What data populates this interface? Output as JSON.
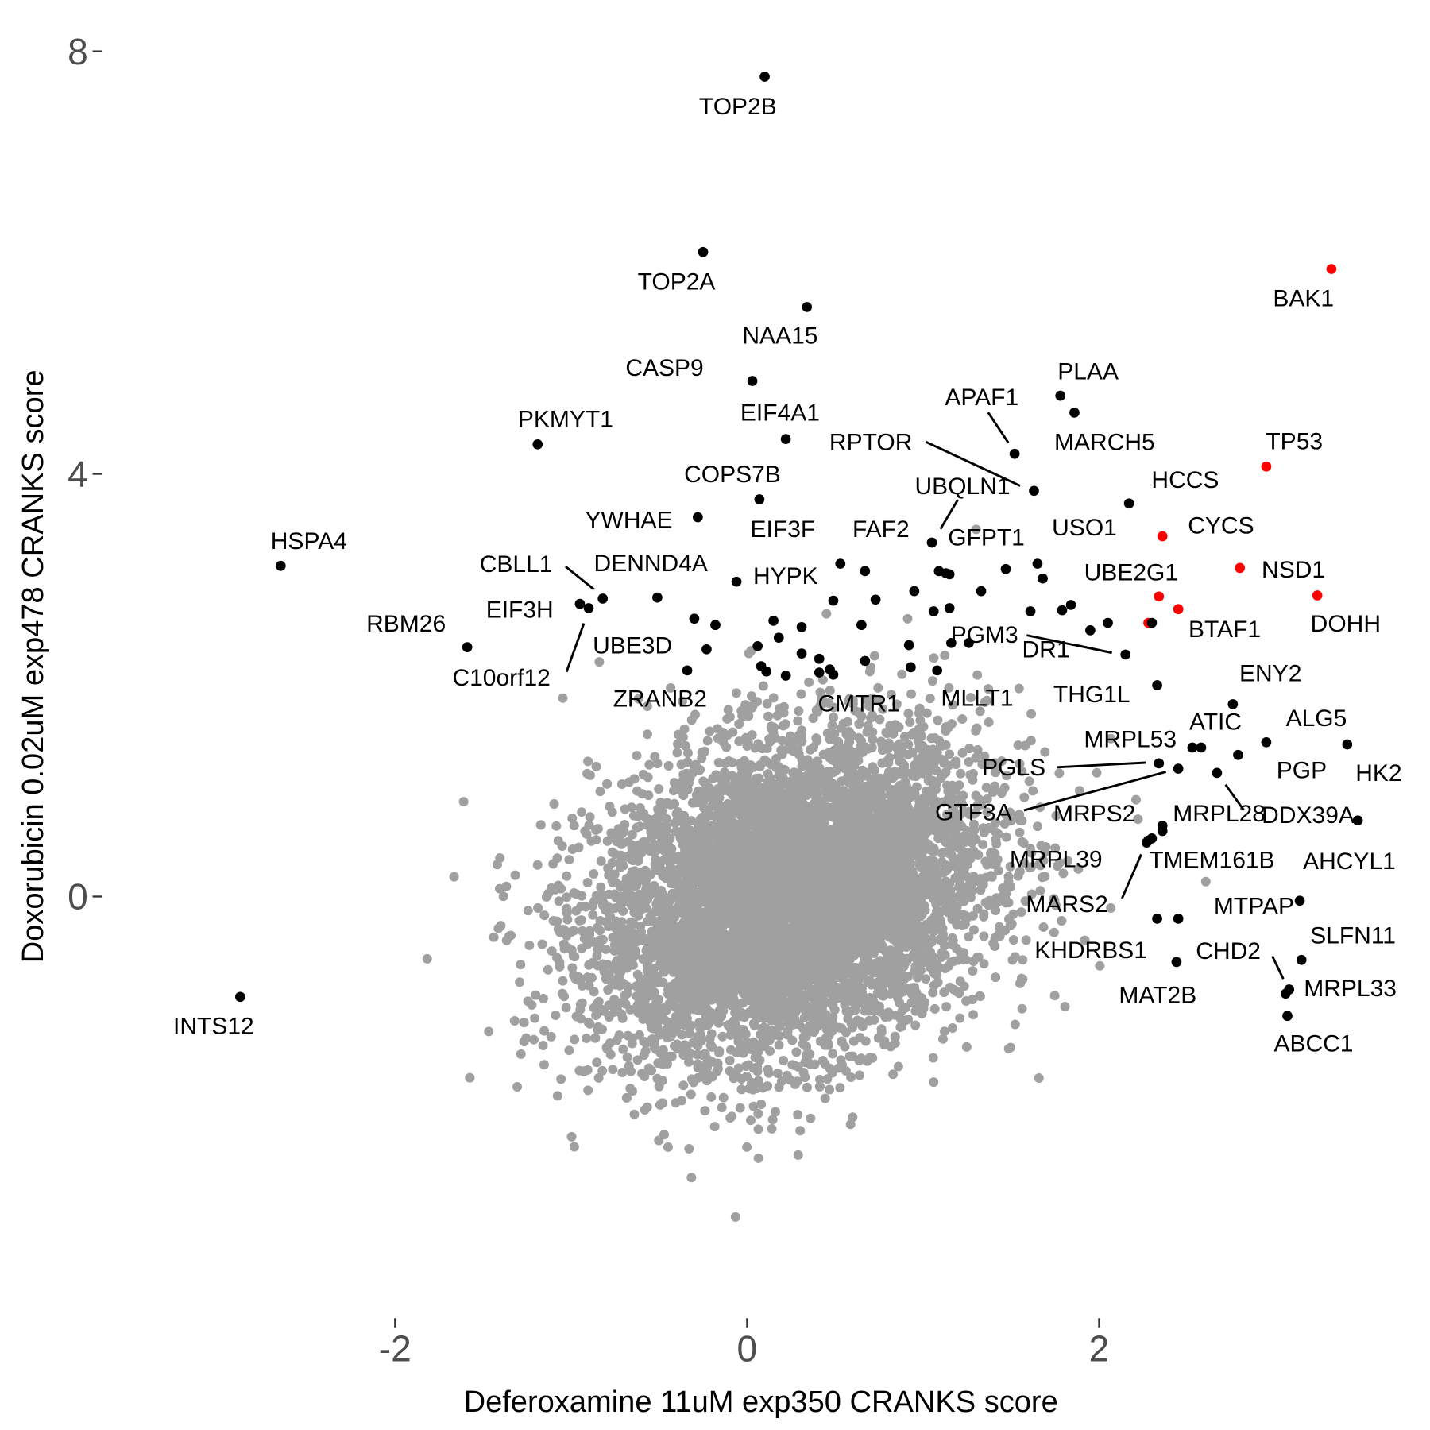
{
  "chart_data": {
    "type": "scatter",
    "title": "",
    "xlabel": "Deferoxamine 11uM exp350 CRANKS score",
    "ylabel": "Doxorubicin 0.02uM exp478 CRANKS score",
    "xlim": [
      -3.3,
      3.6
    ],
    "ylim": [
      -3.2,
      8.2
    ],
    "x_ticks": [
      -2,
      0,
      2
    ],
    "y_ticks": [
      0,
      4,
      8
    ],
    "grid": false,
    "legend": "none",
    "colors": {
      "background_genes": "#a0a0a0",
      "highlighted": "#000000",
      "highlighted_red": "#ff0000"
    },
    "labeled_points": [
      {
        "label": "TOP2B",
        "x": 0.1,
        "y": 7.76,
        "color": "black"
      },
      {
        "label": "TOP2A",
        "x": -0.25,
        "y": 6.1,
        "color": "black"
      },
      {
        "label": "NAA15",
        "x": 0.34,
        "y": 5.58,
        "color": "black"
      },
      {
        "label": "CASP9",
        "x": 0.03,
        "y": 4.88,
        "color": "black"
      },
      {
        "label": "EIF4A1",
        "x": 0.22,
        "y": 4.33,
        "color": "black"
      },
      {
        "label": "PKMYT1",
        "x": -1.19,
        "y": 4.28,
        "color": "black"
      },
      {
        "label": "COPS7B",
        "x": 0.07,
        "y": 3.76,
        "color": "black"
      },
      {
        "label": "YWHAE",
        "x": -0.28,
        "y": 3.59,
        "color": "black"
      },
      {
        "label": "HSPA4",
        "x": -2.65,
        "y": 3.13,
        "color": "black"
      },
      {
        "label": "HYPK",
        "x": -0.06,
        "y": 2.98,
        "color": "black"
      },
      {
        "label": "EIF3F",
        "x": 0.53,
        "y": 3.15,
        "color": "black"
      },
      {
        "label": "CBLL1",
        "x": -0.82,
        "y": 2.82,
        "color": "black"
      },
      {
        "label": "DENND4A",
        "x": -0.51,
        "y": 2.83,
        "color": "black"
      },
      {
        "label": "EIF3H",
        "x": -0.95,
        "y": 2.77,
        "color": "black"
      },
      {
        "label": "C10orf12",
        "x": -0.9,
        "y": 2.73,
        "color": "black"
      },
      {
        "label": "UBE3D",
        "x": -0.23,
        "y": 2.34,
        "color": "black"
      },
      {
        "label": "ZRANB2",
        "x": -0.34,
        "y": 2.14,
        "color": "black"
      },
      {
        "label": "RBM26",
        "x": -1.59,
        "y": 2.36,
        "color": "black"
      },
      {
        "label": "INTS12",
        "x": -2.88,
        "y": -0.95,
        "color": "black"
      },
      {
        "label": "BAK1",
        "x": 3.32,
        "y": 5.94,
        "color": "red"
      },
      {
        "label": "TP53",
        "x": 2.95,
        "y": 4.07,
        "color": "red"
      },
      {
        "label": "CYCS",
        "x": 2.36,
        "y": 3.41,
        "color": "red"
      },
      {
        "label": "NSD1",
        "x": 2.8,
        "y": 3.11,
        "color": "red"
      },
      {
        "label": "DOHH",
        "x": 3.24,
        "y": 2.85,
        "color": "red"
      },
      {
        "label": "UBE2G1",
        "x": 2.34,
        "y": 2.84,
        "color": "red"
      },
      {
        "label": "BTAF1",
        "x": 2.45,
        "y": 2.72,
        "color": "red"
      },
      {
        "label": "PLAA",
        "x": 1.78,
        "y": 4.74,
        "color": "black"
      },
      {
        "label": "MARCH5",
        "x": 1.86,
        "y": 4.58,
        "color": "black"
      },
      {
        "label": "APAF1",
        "x": 1.52,
        "y": 4.19,
        "color": "black"
      },
      {
        "label": "RPTOR",
        "x": 1.63,
        "y": 3.84,
        "color": "black"
      },
      {
        "label": "HCCS",
        "x": 2.17,
        "y": 3.72,
        "color": "black"
      },
      {
        "label": "UBQLN1",
        "x": 1.05,
        "y": 3.35,
        "color": "black"
      },
      {
        "label": "GFPT1",
        "x": 1.13,
        "y": 3.06,
        "color": "black"
      },
      {
        "label": "FAF2",
        "x": 0.67,
        "y": 3.08,
        "color": "black"
      },
      {
        "label": "USO1",
        "x": 1.65,
        "y": 3.15,
        "color": "black"
      },
      {
        "label": "PGM3",
        "x": 1.95,
        "y": 2.52,
        "color": "black"
      },
      {
        "label": "DR1",
        "x": 2.15,
        "y": 2.29,
        "color": "black"
      },
      {
        "label": "THG1L",
        "x": 2.33,
        "y": 2.0,
        "color": "black"
      },
      {
        "label": "MLLT1",
        "x": 1.08,
        "y": 2.14,
        "color": "black"
      },
      {
        "label": "CMTR1",
        "x": 0.49,
        "y": 2.1,
        "color": "black"
      },
      {
        "label": "ENY2",
        "x": 2.76,
        "y": 1.82,
        "color": "black"
      },
      {
        "label": "ALG5",
        "x": 2.95,
        "y": 1.46,
        "color": "black"
      },
      {
        "label": "ATIC",
        "x": 2.58,
        "y": 1.41,
        "color": "black"
      },
      {
        "label": "HK2",
        "x": 3.41,
        "y": 1.44,
        "color": "black"
      },
      {
        "label": "PGP",
        "x": 2.79,
        "y": 1.34,
        "color": "black"
      },
      {
        "label": "MRPL53",
        "x": 2.53,
        "y": 1.41,
        "color": "black"
      },
      {
        "label": "PGLS",
        "x": 2.34,
        "y": 1.26,
        "color": "black"
      },
      {
        "label": "GTF3A",
        "x": 2.45,
        "y": 1.21,
        "color": "black"
      },
      {
        "label": "DDX39A",
        "x": 2.67,
        "y": 1.17,
        "color": "black"
      },
      {
        "label": "MRPS2",
        "x": 2.28,
        "y": 0.53,
        "color": "black"
      },
      {
        "label": "MRPL28",
        "x": 2.36,
        "y": 0.67,
        "color": "black"
      },
      {
        "label": "MRPL39",
        "x": 2.3,
        "y": 0.55,
        "color": "black"
      },
      {
        "label": "TMEM161B",
        "x": 2.36,
        "y": 0.62,
        "color": "black"
      },
      {
        "label": "AHCYL1",
        "x": 3.47,
        "y": 0.72,
        "color": "black"
      },
      {
        "label": "MARS2",
        "x": 2.27,
        "y": 0.51,
        "color": "black"
      },
      {
        "label": "MTPAP",
        "x": 3.14,
        "y": -0.04,
        "color": "black"
      },
      {
        "label": "SLFN11",
        "x": 3.15,
        "y": -0.6,
        "color": "black"
      },
      {
        "label": "KHDRBS1",
        "x": 2.33,
        "y": -0.21,
        "color": "black"
      },
      {
        "label": "CHD2",
        "x": 3.06,
        "y": -0.92,
        "color": "black"
      },
      {
        "label": "MAT2B",
        "x": 2.44,
        "y": -0.62,
        "color": "black"
      },
      {
        "label": "MRPL33",
        "x": 3.08,
        "y": -0.88,
        "color": "black"
      },
      {
        "label": "ABCC1",
        "x": 3.07,
        "y": -1.13,
        "color": "black"
      }
    ],
    "unlabeled_highlighted_points": [
      {
        "x": 2.28,
        "y": 2.59,
        "color": "red"
      },
      {
        "x": 2.45,
        "y": -0.21,
        "color": "black"
      },
      {
        "x": 1.09,
        "y": 3.08,
        "color": "black"
      },
      {
        "x": 1.15,
        "y": 3.05,
        "color": "black"
      },
      {
        "x": 1.47,
        "y": 3.1,
        "color": "black"
      },
      {
        "x": 1.68,
        "y": 3.01,
        "color": "black"
      },
      {
        "x": 0.49,
        "y": 2.8,
        "color": "black"
      },
      {
        "x": 0.73,
        "y": 2.81,
        "color": "black"
      },
      {
        "x": 0.95,
        "y": 2.89,
        "color": "black"
      },
      {
        "x": 1.15,
        "y": 2.73,
        "color": "black"
      },
      {
        "x": 1.33,
        "y": 2.89,
        "color": "black"
      },
      {
        "x": 1.06,
        "y": 2.7,
        "color": "black"
      },
      {
        "x": 1.61,
        "y": 2.7,
        "color": "black"
      },
      {
        "x": 1.79,
        "y": 2.71,
        "color": "black"
      },
      {
        "x": 1.84,
        "y": 2.76,
        "color": "black"
      },
      {
        "x": 0.15,
        "y": 2.61,
        "color": "black"
      },
      {
        "x": 0.31,
        "y": 2.55,
        "color": "black"
      },
      {
        "x": 0.65,
        "y": 2.57,
        "color": "black"
      },
      {
        "x": 2.05,
        "y": 2.59,
        "color": "black"
      },
      {
        "x": 2.3,
        "y": 2.59,
        "color": "black"
      },
      {
        "x": -0.3,
        "y": 2.63,
        "color": "black"
      },
      {
        "x": -0.18,
        "y": 2.57,
        "color": "black"
      },
      {
        "x": 0.18,
        "y": 2.45,
        "color": "black"
      },
      {
        "x": 0.92,
        "y": 2.38,
        "color": "black"
      },
      {
        "x": 1.16,
        "y": 2.4,
        "color": "black"
      },
      {
        "x": 0.06,
        "y": 2.37,
        "color": "black"
      },
      {
        "x": 0.31,
        "y": 2.3,
        "color": "black"
      },
      {
        "x": 0.41,
        "y": 2.25,
        "color": "black"
      },
      {
        "x": 0.67,
        "y": 2.23,
        "color": "black"
      },
      {
        "x": 0.93,
        "y": 2.17,
        "color": "black"
      },
      {
        "x": 0.08,
        "y": 2.18,
        "color": "black"
      },
      {
        "x": 0.11,
        "y": 2.13,
        "color": "black"
      },
      {
        "x": 0.22,
        "y": 2.09,
        "color": "black"
      },
      {
        "x": 0.41,
        "y": 2.12,
        "color": "black"
      },
      {
        "x": 0.47,
        "y": 2.15,
        "color": "black"
      },
      {
        "x": 1.26,
        "y": 2.4,
        "color": "black"
      }
    ]
  }
}
